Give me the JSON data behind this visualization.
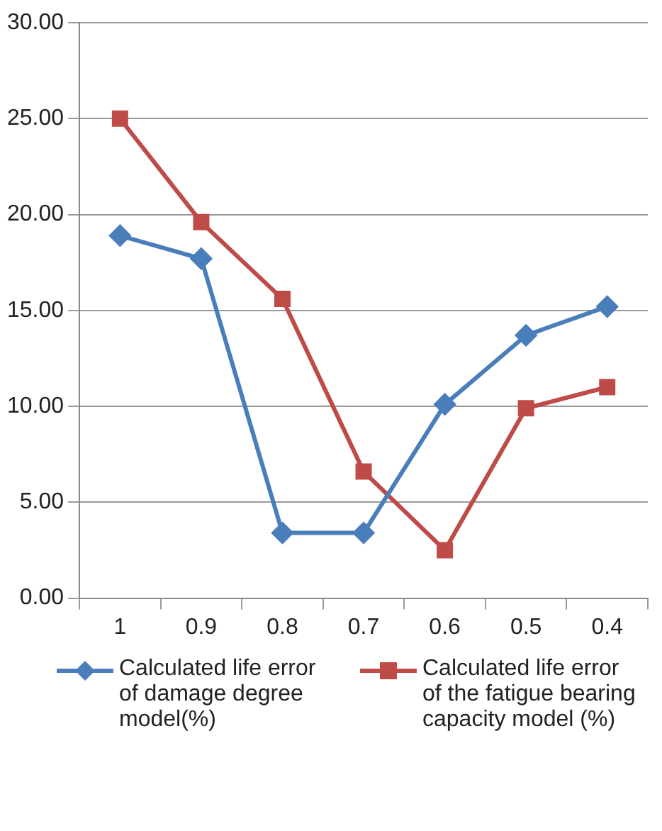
{
  "chart_data": {
    "type": "line",
    "categories": [
      "1",
      "0.9",
      "0.8",
      "0.7",
      "0.6",
      "0.5",
      "0.4"
    ],
    "series": [
      {
        "name": "Calculated life error of damage degree model(%)",
        "color": "#4a7ebb",
        "marker": "diamond",
        "values": [
          18.9,
          17.7,
          3.4,
          3.4,
          10.1,
          13.7,
          15.2
        ]
      },
      {
        "name": "Calculated life error of the fatigue bearing capacity model (%)",
        "color": "#be4b48",
        "marker": "square",
        "values": [
          25.0,
          19.6,
          15.6,
          6.6,
          2.5,
          9.9,
          11.0
        ]
      }
    ],
    "ylim": [
      0,
      30
    ],
    "yticks": [
      {
        "value": 0,
        "label": "0.00"
      },
      {
        "value": 5,
        "label": "5.00"
      },
      {
        "value": 10,
        "label": "10.00"
      },
      {
        "value": 15,
        "label": "15.00"
      },
      {
        "value": 20,
        "label": "20.00"
      },
      {
        "value": 25,
        "label": "25.00"
      },
      {
        "value": 30,
        "label": "30.00"
      }
    ],
    "grid": "y",
    "legend": "bottom"
  }
}
